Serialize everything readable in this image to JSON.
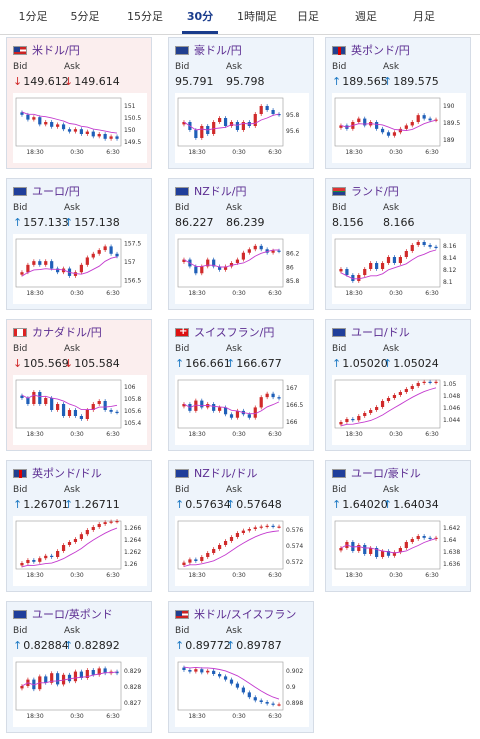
{
  "tabs": [
    {
      "label": "1分足",
      "active": false
    },
    {
      "label": "5分足",
      "active": false
    },
    {
      "label": "15分足",
      "active": false
    },
    {
      "label": "30分足",
      "active": true
    },
    {
      "label": "1時間足",
      "active": false
    },
    {
      "label": "日足",
      "active": false
    },
    {
      "label": "週足",
      "active": false
    },
    {
      "label": "月足",
      "active": false
    }
  ],
  "colors": {
    "up_arrow": "#1f7ac4",
    "down_arrow": "#d02a2a",
    "candle_up": "#d02a2a",
    "candle_down": "#1f5fb8",
    "moving_average": "#c43ccf",
    "active_tab": "#1a3c8c"
  },
  "cards": [
    {
      "pair": "米ドル/円",
      "flag": "us",
      "dir": "down",
      "bid": "149.612",
      "ask": "149.614",
      "bid_label": "Bid",
      "ask_label": "Ask",
      "chart_data": {
        "type": "candlestick",
        "x_ticks": [
          "18:30",
          "0:30",
          "6:30"
        ],
        "y_ticks": [
          "151",
          "150.5",
          "150",
          "149.5"
        ],
        "ylim": [
          149.3,
          151.3
        ],
        "trend": "down",
        "close": [
          150.6,
          150.4,
          150.5,
          150.2,
          150.3,
          150.1,
          150.2,
          150.0,
          149.9,
          150.0,
          149.8,
          149.9,
          149.7,
          149.8,
          149.6,
          149.7,
          149.6
        ]
      }
    },
    {
      "pair": "豪ドル/円",
      "flag": "au",
      "dir": "none",
      "bid": "95.791",
      "ask": "95.798",
      "bid_label": "Bid",
      "ask_label": "Ask",
      "chart_data": {
        "type": "candlestick",
        "x_ticks": [
          "18:30",
          "0:30",
          "6:30"
        ],
        "y_ticks": [
          "95.8",
          "95.6"
        ],
        "ylim": [
          95.4,
          96.0
        ],
        "trend": "mixed",
        "close": [
          95.7,
          95.6,
          95.5,
          95.65,
          95.55,
          95.7,
          95.75,
          95.65,
          95.7,
          95.6,
          95.7,
          95.65,
          95.8,
          95.9,
          95.85,
          95.8,
          95.79
        ]
      }
    },
    {
      "pair": "英ポンド/円",
      "flag": "gb",
      "dir": "up",
      "bid": "189.565",
      "ask": "189.575",
      "bid_label": "Bid",
      "ask_label": "Ask",
      "chart_data": {
        "type": "candlestick",
        "x_ticks": [
          "18:30",
          "0:30",
          "6:30"
        ],
        "y_ticks": [
          "190",
          "189.5",
          "189"
        ],
        "ylim": [
          188.8,
          190.2
        ],
        "trend": "mixed",
        "close": [
          189.4,
          189.3,
          189.5,
          189.6,
          189.4,
          189.5,
          189.3,
          189.2,
          189.1,
          189.2,
          189.3,
          189.4,
          189.5,
          189.7,
          189.6,
          189.55,
          189.57
        ]
      }
    },
    {
      "pair": "ユーロ/円",
      "flag": "eu",
      "dir": "up",
      "bid": "157.133",
      "ask": "157.138",
      "bid_label": "Bid",
      "ask_label": "Ask",
      "chart_data": {
        "type": "candlestick",
        "x_ticks": [
          "18:30",
          "0:30",
          "6:30"
        ],
        "y_ticks": [
          "157.5",
          "157",
          "156.5"
        ],
        "ylim": [
          156.3,
          157.6
        ],
        "trend": "up",
        "close": [
          156.7,
          156.9,
          157.0,
          156.9,
          157.0,
          156.8,
          156.7,
          156.8,
          156.6,
          156.7,
          156.9,
          157.1,
          157.2,
          157.3,
          157.4,
          157.2,
          157.13
        ]
      }
    },
    {
      "pair": "NZドル/円",
      "flag": "nz",
      "dir": "none",
      "bid": "86.227",
      "ask": "86.239",
      "bid_label": "Bid",
      "ask_label": "Ask",
      "chart_data": {
        "type": "candlestick",
        "x_ticks": [
          "18:30",
          "0:30",
          "6:30"
        ],
        "y_ticks": [
          "86.2",
          "86",
          "85.8"
        ],
        "ylim": [
          85.7,
          86.4
        ],
        "trend": "mixed",
        "close": [
          86.1,
          86.0,
          85.9,
          86.0,
          86.1,
          86.0,
          85.95,
          86.0,
          86.05,
          86.1,
          86.2,
          86.25,
          86.3,
          86.25,
          86.2,
          86.23,
          86.22
        ]
      }
    },
    {
      "pair": "ランド/円",
      "flag": "za",
      "dir": "none",
      "bid": "8.156",
      "ask": "8.166",
      "bid_label": "Bid",
      "ask_label": "Ask",
      "chart_data": {
        "type": "candlestick",
        "x_ticks": [
          "18:30",
          "0:30",
          "6:30"
        ],
        "y_ticks": [
          "8.16",
          "8.14",
          "8.12",
          "8.1"
        ],
        "ylim": [
          8.09,
          8.17
        ],
        "trend": "up",
        "close": [
          8.12,
          8.11,
          8.1,
          8.11,
          8.12,
          8.13,
          8.12,
          8.13,
          8.14,
          8.13,
          8.14,
          8.15,
          8.16,
          8.165,
          8.16,
          8.157,
          8.156
        ]
      }
    },
    {
      "pair": "カナダドル/円",
      "flag": "ca",
      "dir": "down",
      "bid": "105.569",
      "ask": "105.584",
      "bid_label": "Bid",
      "ask_label": "Ask",
      "chart_data": {
        "type": "candlestick",
        "x_ticks": [
          "18:30",
          "0:30",
          "6:30"
        ],
        "y_ticks": [
          "106",
          "105.8",
          "105.6",
          "105.4"
        ],
        "ylim": [
          105.3,
          106.1
        ],
        "trend": "down",
        "close": [
          105.8,
          105.7,
          105.9,
          105.7,
          105.8,
          105.6,
          105.7,
          105.5,
          105.6,
          105.5,
          105.45,
          105.6,
          105.7,
          105.75,
          105.6,
          105.57,
          105.56
        ]
      }
    },
    {
      "pair": "スイスフラン/円",
      "flag": "ch",
      "dir": "up",
      "bid": "166.661",
      "ask": "166.677",
      "bid_label": "Bid",
      "ask_label": "Ask",
      "chart_data": {
        "type": "candlestick",
        "x_ticks": [
          "18:30",
          "0:30",
          "6:30"
        ],
        "y_ticks": [
          "167",
          "166.5",
          "166"
        ],
        "ylim": [
          165.8,
          167.2
        ],
        "trend": "mixed",
        "close": [
          166.5,
          166.3,
          166.6,
          166.4,
          166.5,
          166.3,
          166.4,
          166.2,
          166.1,
          166.3,
          166.2,
          166.1,
          166.4,
          166.7,
          166.8,
          166.7,
          166.66
        ]
      }
    },
    {
      "pair": "ユーロ/ドル",
      "flag": "eu",
      "dir": "up",
      "bid": "1.05020",
      "ask": "1.05024",
      "bid_label": "Bid",
      "ask_label": "Ask",
      "chart_data": {
        "type": "candlestick",
        "x_ticks": [
          "18:30",
          "0:30",
          "6:30"
        ],
        "y_ticks": [
          "1.05",
          "1.048",
          "1.046",
          "1.044"
        ],
        "ylim": [
          1.0425,
          1.0505
        ],
        "trend": "up",
        "close": [
          1.0435,
          1.044,
          1.0438,
          1.0445,
          1.045,
          1.0455,
          1.046,
          1.047,
          1.0475,
          1.048,
          1.0485,
          1.049,
          1.0495,
          1.05,
          1.0502,
          1.0501,
          1.0502
        ]
      }
    },
    {
      "pair": "英ポンド/ドル",
      "flag": "gb",
      "dir": "up",
      "bid": "1.26701",
      "ask": "1.26711",
      "bid_label": "Bid",
      "ask_label": "Ask",
      "chart_data": {
        "type": "candlestick",
        "x_ticks": [
          "18:30",
          "0:30",
          "6:30"
        ],
        "y_ticks": [
          "1.266",
          "1.264",
          "1.262",
          "1.26"
        ],
        "ylim": [
          1.259,
          1.267
        ],
        "trend": "up",
        "close": [
          1.26,
          1.2605,
          1.2602,
          1.2608,
          1.2612,
          1.261,
          1.262,
          1.263,
          1.2635,
          1.264,
          1.2648,
          1.2655,
          1.266,
          1.2665,
          1.2668,
          1.2669,
          1.267
        ]
      }
    },
    {
      "pair": "NZドル/ドル",
      "flag": "nz",
      "dir": "up",
      "bid": "0.57634",
      "ask": "0.57648",
      "bid_label": "Bid",
      "ask_label": "Ask",
      "chart_data": {
        "type": "candlestick",
        "x_ticks": [
          "18:30",
          "0:30",
          "6:30"
        ],
        "y_ticks": [
          "0.576",
          "0.574",
          "0.572"
        ],
        "ylim": [
          0.571,
          0.577
        ],
        "trend": "up",
        "close": [
          0.5718,
          0.5722,
          0.572,
          0.5725,
          0.573,
          0.5735,
          0.574,
          0.5745,
          0.575,
          0.5755,
          0.5758,
          0.576,
          0.5762,
          0.5763,
          0.5764,
          0.5763,
          0.5763
        ]
      }
    },
    {
      "pair": "ユーロ/豪ドル",
      "flag": "eu",
      "dir": "up",
      "bid": "1.64020",
      "ask": "1.64034",
      "bid_label": "Bid",
      "ask_label": "Ask",
      "chart_data": {
        "type": "candlestick",
        "x_ticks": [
          "18:30",
          "0:30",
          "6:30"
        ],
        "y_ticks": [
          "1.642",
          "1.64",
          "1.638",
          "1.636"
        ],
        "ylim": [
          1.635,
          1.643
        ],
        "trend": "mixed",
        "close": [
          1.6385,
          1.6395,
          1.638,
          1.639,
          1.6375,
          1.6385,
          1.637,
          1.638,
          1.6372,
          1.6378,
          1.6385,
          1.6395,
          1.64,
          1.6405,
          1.6402,
          1.64,
          1.6402
        ]
      }
    },
    {
      "pair": "ユーロ/英ポンド",
      "flag": "eu",
      "dir": "up",
      "bid": "0.82884",
      "ask": "0.82892",
      "bid_label": "Bid",
      "ask_label": "Ask",
      "chart_data": {
        "type": "candlestick",
        "x_ticks": [
          "18:30",
          "0:30",
          "6:30"
        ],
        "y_ticks": [
          "0.829",
          "0.828",
          "0.827"
        ],
        "ylim": [
          0.8265,
          0.8295
        ],
        "trend": "mixed",
        "close": [
          0.828,
          0.8284,
          0.8278,
          0.8286,
          0.8282,
          0.8288,
          0.8281,
          0.8287,
          0.8283,
          0.8289,
          0.8285,
          0.829,
          0.8287,
          0.8291,
          0.8288,
          0.8289,
          0.8288
        ]
      }
    },
    {
      "pair": "米ドル/スイスフラン",
      "flag": "us",
      "dir": "up",
      "bid": "0.89772",
      "ask": "0.89787",
      "bid_label": "Bid",
      "ask_label": "Ask",
      "chart_data": {
        "type": "candlestick",
        "x_ticks": [
          "18:30",
          "0:30",
          "6:30"
        ],
        "y_ticks": [
          "0.902",
          "0.9",
          "0.898"
        ],
        "ylim": [
          0.897,
          0.903
        ],
        "trend": "down",
        "close": [
          0.902,
          0.9018,
          0.9021,
          0.9017,
          0.9019,
          0.9015,
          0.9012,
          0.9008,
          0.9003,
          0.8998,
          0.8992,
          0.8986,
          0.8982,
          0.898,
          0.8978,
          0.8977,
          0.8977
        ]
      }
    }
  ]
}
